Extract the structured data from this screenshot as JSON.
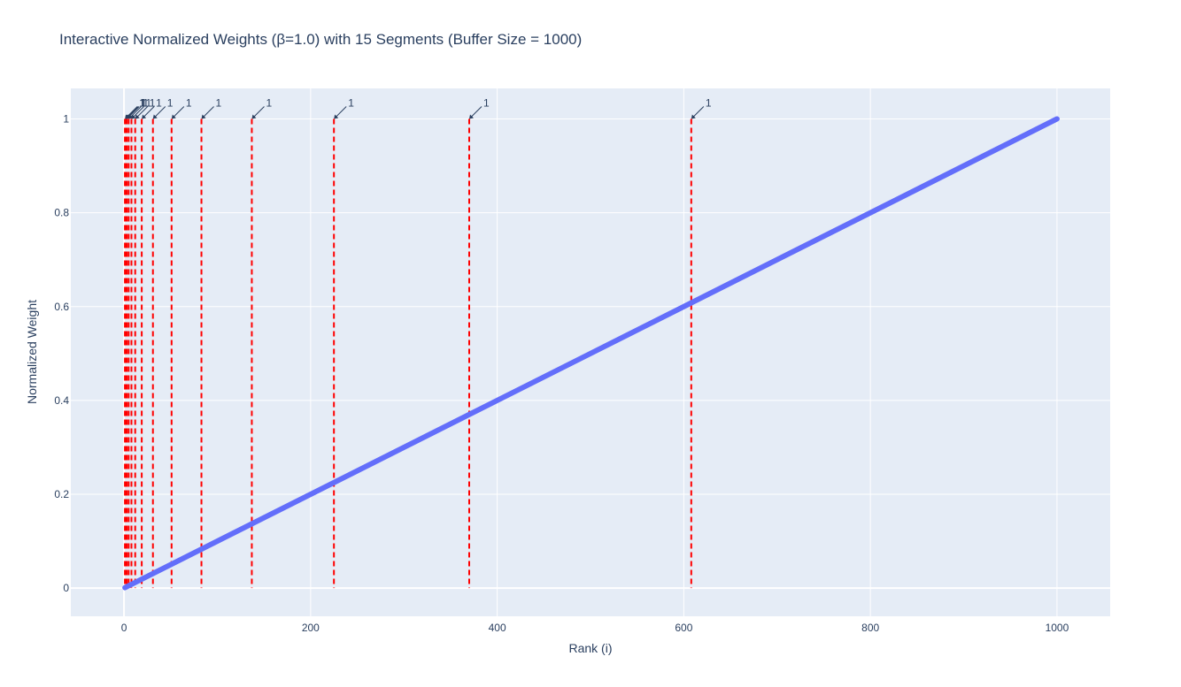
{
  "chart_data": {
    "type": "line",
    "title": "Interactive Normalized Weights (β=1.0) with 15 Segments (Buffer Size = 1000)",
    "xlabel": "Rank (i)",
    "ylabel": "Normalized Weight",
    "xlim": [
      -57,
      1057
    ],
    "ylim": [
      -0.06,
      1.065
    ],
    "x_ticks": [
      0,
      200,
      400,
      600,
      800,
      1000
    ],
    "x_tick_labels": [
      "0",
      "200",
      "400",
      "600",
      "800",
      "1000"
    ],
    "y_ticks": [
      0,
      0.2,
      0.4,
      0.6,
      0.8,
      1
    ],
    "y_tick_labels": [
      "0",
      "0.2",
      "0.4",
      "0.6",
      "0.8",
      "1"
    ],
    "grid": true,
    "legend": "none",
    "series": [
      {
        "x": [
          1,
          1000
        ],
        "y": [
          0.001,
          1.0
        ],
        "color": "#636efa"
      }
    ],
    "segment_boundaries": {
      "x": [
        1,
        2,
        3,
        5,
        8,
        12,
        19,
        31,
        51,
        83,
        137,
        225,
        370,
        608
      ],
      "color": "#ff0000",
      "style": "dashed"
    },
    "annotations": [
      {
        "x": 1,
        "y": 1,
        "text": "1"
      },
      {
        "x": 2,
        "y": 1,
        "text": "1"
      },
      {
        "x": 3,
        "y": 1,
        "text": "1"
      },
      {
        "x": 5,
        "y": 1,
        "text": "1"
      },
      {
        "x": 8,
        "y": 1,
        "text": "1"
      },
      {
        "x": 12,
        "y": 1,
        "text": "1"
      },
      {
        "x": 19,
        "y": 1,
        "text": "1"
      },
      {
        "x": 31,
        "y": 1,
        "text": "1"
      },
      {
        "x": 51,
        "y": 1,
        "text": "1"
      },
      {
        "x": 83,
        "y": 1,
        "text": "1"
      },
      {
        "x": 137,
        "y": 1,
        "text": "1"
      },
      {
        "x": 225,
        "y": 1,
        "text": "1"
      },
      {
        "x": 370,
        "y": 1,
        "text": "1"
      },
      {
        "x": 608,
        "y": 1,
        "text": "1"
      }
    ],
    "colors": {
      "plot_background": "#e5ecf6",
      "grid": "#ffffff",
      "text": "#2a3f5f"
    }
  }
}
